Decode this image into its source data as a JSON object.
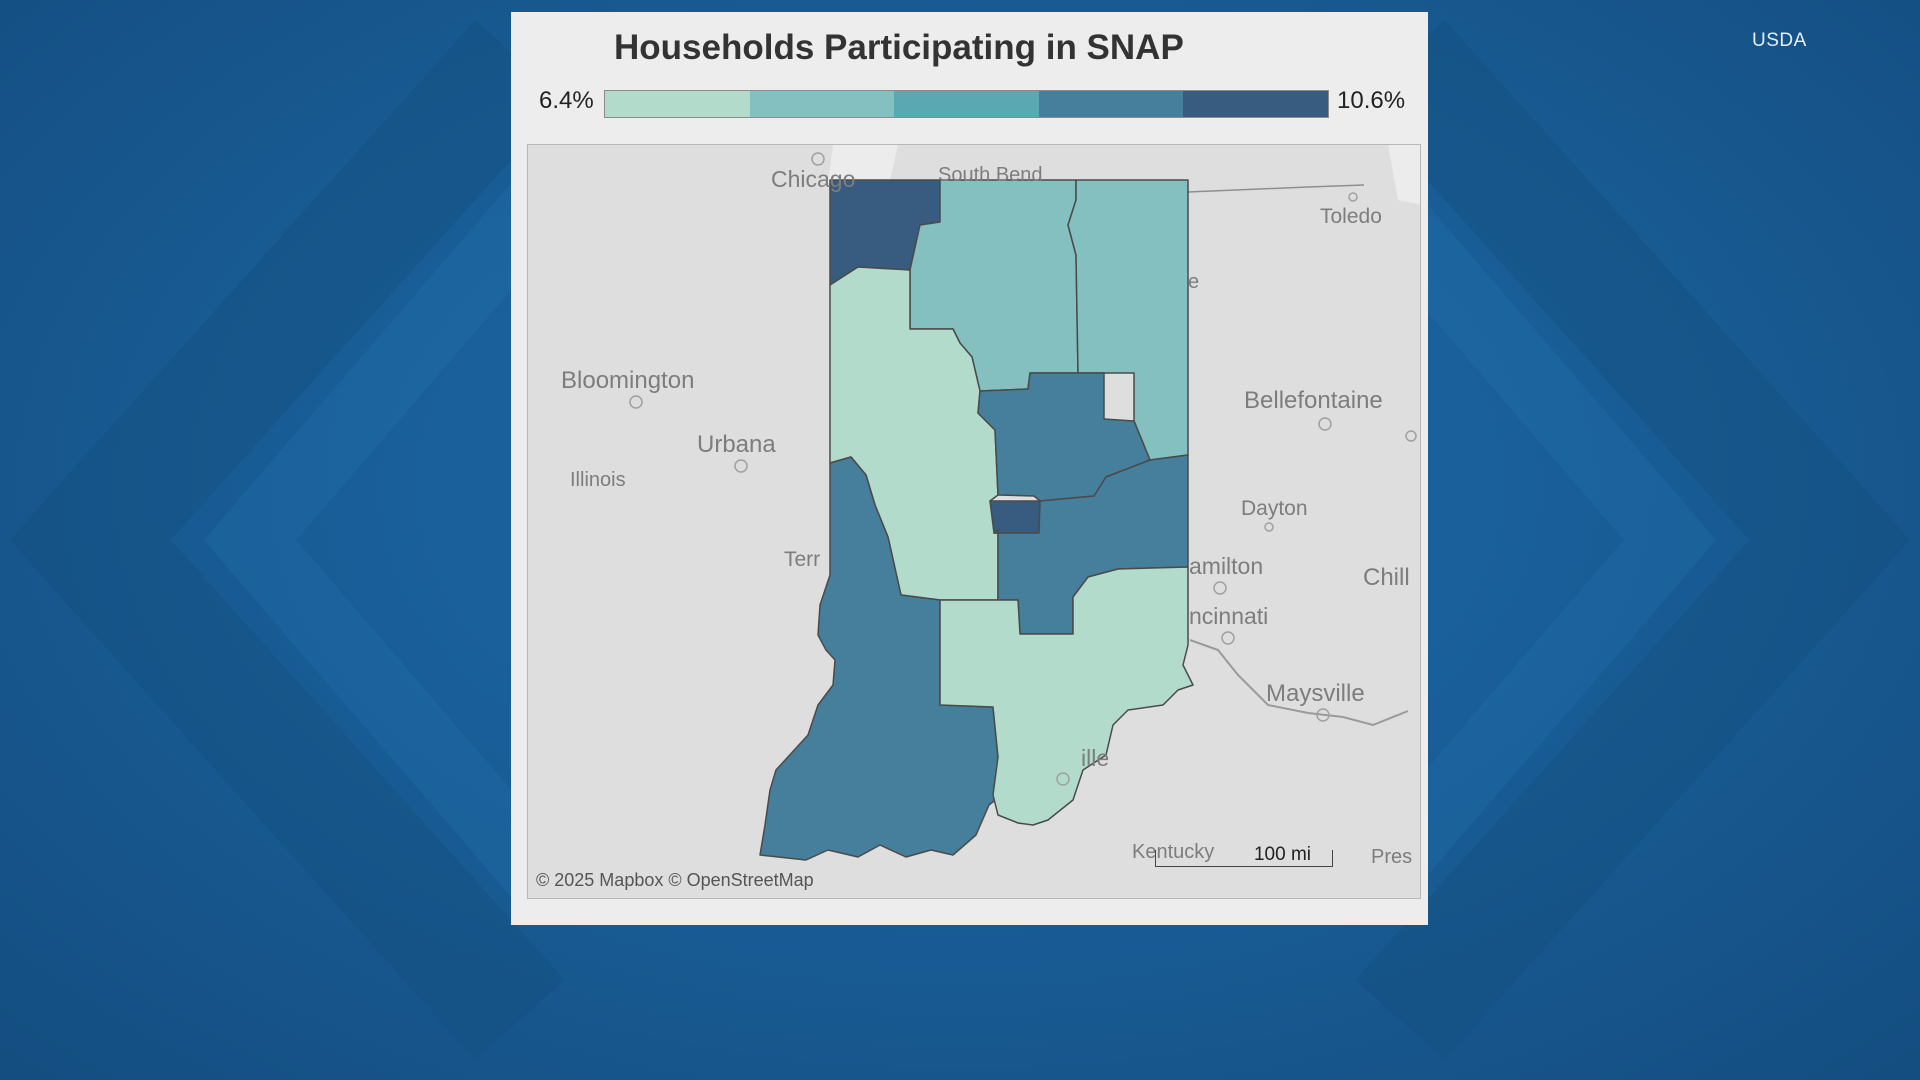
{
  "source": "USDA",
  "title": "Households Participating in SNAP",
  "legend": {
    "min_label": "6.4%",
    "max_label": "10.6%",
    "colors": [
      "#b3dbcb",
      "#84c0bf",
      "#5aa9b2",
      "#457f9c",
      "#385b80"
    ]
  },
  "places": {
    "chicago": "Chicago",
    "south_bend": "South Bend",
    "toledo": "Toledo",
    "fort_wayne_partial": "e",
    "bloomington": "Bloomington",
    "urbana": "Urbana",
    "illinois": "Illinois",
    "bellefontaine": "Bellefontaine",
    "dayton": "Dayton",
    "terre_haute_partial": "Terr",
    "hamilton_partial": "amilton",
    "cincinnati_partial": "ncinnati",
    "chillicothe_partial": "Chill",
    "maysville": "Maysville",
    "louisville_partial": "ille",
    "kentucky": "Kentucky",
    "pres_partial": "Pres"
  },
  "attribution": "© 2025 Mapbox  © OpenStreetMap",
  "scale_label": "100 mi",
  "regions": [
    {
      "name": "northwest",
      "level": 5
    },
    {
      "name": "north-central",
      "level": 2
    },
    {
      "name": "northeast",
      "level": 2
    },
    {
      "name": "west-central",
      "level": 1
    },
    {
      "name": "central",
      "level": 4
    },
    {
      "name": "indianapolis",
      "level": 5
    },
    {
      "name": "east-central",
      "level": 4
    },
    {
      "name": "southwest",
      "level": 4
    },
    {
      "name": "southeast",
      "level": 1
    }
  ]
}
